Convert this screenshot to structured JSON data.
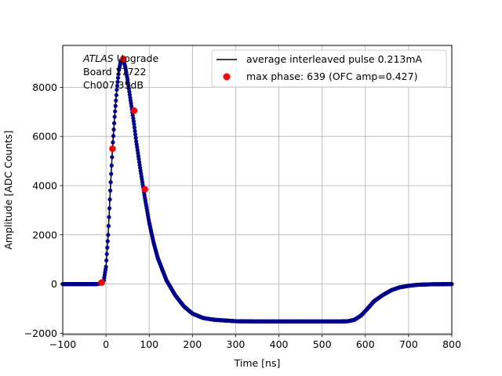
{
  "chart_data": {
    "type": "line",
    "xlabel": "Time [ns]",
    "ylabel": "Amplitude [ADC Counts]",
    "xlim": [
      -100,
      800
    ],
    "ylim": [
      -2050,
      9700
    ],
    "grid": true,
    "xticks": [
      -100,
      0,
      100,
      200,
      300,
      400,
      500,
      600,
      700,
      800
    ],
    "yticks": [
      -2000,
      0,
      2000,
      4000,
      6000,
      8000
    ],
    "annotation": {
      "line1_italic": "ATLAS",
      "line1_rest": " Upgrade",
      "line2": "Board 17722",
      "line3": "Ch007 35dB"
    },
    "legend": {
      "position": "top-right",
      "entries": [
        {
          "label": "average interleaved pulse 0.213mA",
          "marker": "line",
          "color": "#000000"
        },
        {
          "label": "max phase: 639 (OFC amp=0.427)",
          "marker": "circle",
          "color": "#ff0000"
        }
      ]
    },
    "series": [
      {
        "name": "average interleaved pulse 0.213mA",
        "color": "#000000",
        "point_color": "#00008b",
        "x": [
          -100,
          -80,
          -60,
          -40,
          -20,
          -10,
          -5,
          0,
          5,
          10,
          15,
          20,
          25,
          30,
          35,
          40,
          45,
          50,
          55,
          60,
          65,
          70,
          80,
          90,
          100,
          110,
          120,
          140,
          160,
          180,
          200,
          225,
          250,
          300,
          350,
          400,
          450,
          500,
          540,
          560,
          575,
          590,
          605,
          620,
          640,
          660,
          680,
          700,
          720,
          750,
          800
        ],
        "y": [
          0,
          0,
          0,
          0,
          0,
          30,
          150,
          700,
          2000,
          3800,
          5500,
          6800,
          7900,
          8700,
          9100,
          9150,
          8800,
          8300,
          7700,
          7100,
          6500,
          5800,
          4600,
          3500,
          2500,
          1700,
          1050,
          150,
          -450,
          -900,
          -1200,
          -1380,
          -1450,
          -1510,
          -1520,
          -1520,
          -1520,
          -1520,
          -1520,
          -1510,
          -1450,
          -1280,
          -1000,
          -700,
          -450,
          -250,
          -130,
          -70,
          -30,
          -10,
          0
        ]
      },
      {
        "name": "max phase: 639 (OFC amp=0.427)",
        "color": "#ff0000",
        "x": [
          -10,
          15,
          40,
          65,
          90
        ],
        "y": [
          60,
          5500,
          9150,
          7050,
          3850
        ]
      }
    ]
  }
}
